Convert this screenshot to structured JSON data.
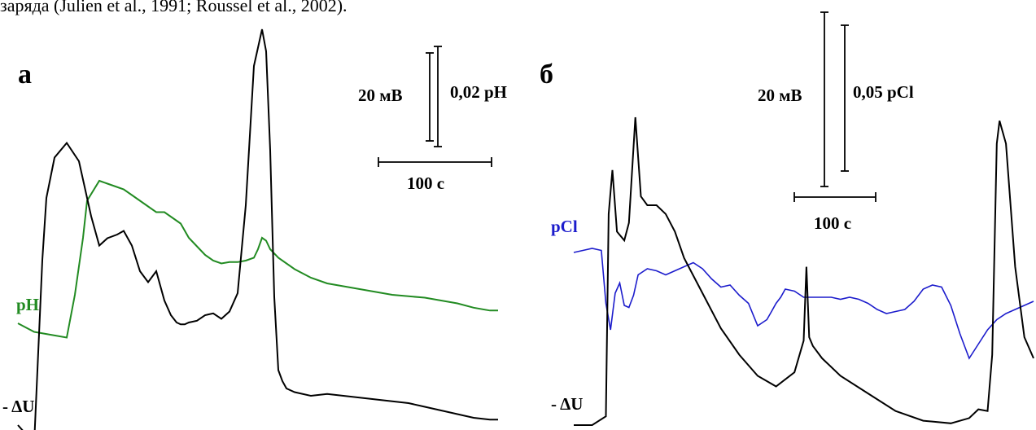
{
  "caption_fragment": "заряда (Julien et al., 1991; Roussel et al., 2002).",
  "colors": {
    "delta_u": "#000000",
    "ph": "#228B22",
    "pcl": "#1C1CCC",
    "scale": "#000000"
  },
  "chart_data": [
    {
      "type": "line",
      "panel_label": "а",
      "xlabel": "",
      "ylabel": "",
      "scale_bars": {
        "voltage_label": "20 мВ",
        "ion_label": "0,02 pH",
        "time_label": "100 с"
      },
      "series": [
        {
          "name": "- ΔU",
          "color": "#000000",
          "x": [
            0,
            20,
            30,
            35,
            45,
            60,
            75,
            90,
            100,
            110,
            122,
            130,
            140,
            150,
            160,
            170,
            180,
            188,
            195,
            200,
            205,
            210,
            220,
            230,
            240,
            250,
            260,
            270,
            280,
            290,
            300,
            305,
            310,
            315,
            320,
            325,
            330,
            340,
            360,
            380,
            400,
            420,
            440,
            460,
            480,
            500,
            520,
            540,
            560,
            580,
            590
          ],
          "y": [
            0,
            -0.5,
            4.5,
            6.2,
            7.3,
            7.7,
            7.2,
            5.7,
            4.9,
            5.1,
            5.2,
            5.3,
            4.9,
            4.2,
            3.9,
            4.2,
            3.4,
            3.0,
            2.8,
            2.75,
            2.75,
            2.8,
            2.85,
            3.0,
            3.05,
            2.9,
            3.1,
            3.6,
            6.0,
            9.8,
            10.8,
            10.2,
            7.5,
            3.5,
            1.5,
            1.2,
            1.0,
            0.9,
            0.8,
            0.85,
            0.8,
            0.75,
            0.7,
            0.65,
            0.6,
            0.5,
            0.4,
            0.3,
            0.2,
            0.15,
            0.15
          ]
        },
        {
          "name": "pH",
          "color": "#228B22",
          "x": [
            0,
            20,
            40,
            60,
            70,
            80,
            85,
            100,
            110,
            120,
            130,
            140,
            150,
            160,
            170,
            180,
            190,
            200,
            210,
            220,
            230,
            240,
            250,
            260,
            270,
            280,
            290,
            295,
            300,
            305,
            310,
            320,
            340,
            360,
            380,
            400,
            420,
            440,
            460,
            480,
            500,
            520,
            540,
            560,
            580,
            590
          ],
          "y": [
            0,
            -0.3,
            -0.4,
            -0.5,
            1.0,
            3.0,
            4.3,
            5.0,
            4.9,
            4.8,
            4.7,
            4.5,
            4.3,
            4.1,
            3.9,
            3.9,
            3.7,
            3.5,
            3.0,
            2.7,
            2.4,
            2.2,
            2.1,
            2.15,
            2.15,
            2.2,
            2.3,
            2.6,
            3.0,
            2.9,
            2.6,
            2.3,
            1.9,
            1.6,
            1.4,
            1.3,
            1.2,
            1.1,
            1.0,
            0.95,
            0.9,
            0.8,
            0.7,
            0.55,
            0.45,
            0.45
          ]
        }
      ]
    },
    {
      "type": "line",
      "panel_label": "б",
      "xlabel": "",
      "ylabel": "",
      "scale_bars": {
        "voltage_label": "20 мВ",
        "ion_label": "0,05 pCl",
        "time_label": "100 с"
      },
      "series": [
        {
          "name": "- ΔU",
          "color": "#000000",
          "x": [
            0,
            20,
            35,
            38,
            42,
            47,
            55,
            60,
            67,
            73,
            80,
            90,
            100,
            110,
            120,
            140,
            160,
            180,
            200,
            220,
            240,
            250,
            253,
            256,
            260,
            270,
            290,
            320,
            350,
            380,
            410,
            430,
            440,
            450,
            455,
            460,
            463,
            470,
            480,
            490,
            500
          ],
          "y": [
            0,
            0,
            0.5,
            12.0,
            14.5,
            11.0,
            10.5,
            11.5,
            17.5,
            13.0,
            12.5,
            12.5,
            12.0,
            11.0,
            9.5,
            7.5,
            5.5,
            4.0,
            2.8,
            2.2,
            3.0,
            4.8,
            9.0,
            5.0,
            4.5,
            3.8,
            2.8,
            1.8,
            0.8,
            0.25,
            0.1,
            0.4,
            0.9,
            0.8,
            4.0,
            16.0,
            17.3,
            16.0,
            9.0,
            5.0,
            3.8
          ]
        },
        {
          "name": "pCl",
          "color": "#1C1CCC",
          "x": [
            0,
            10,
            20,
            30,
            35,
            40,
            45,
            50,
            55,
            60,
            65,
            70,
            80,
            90,
            100,
            110,
            120,
            130,
            140,
            150,
            160,
            170,
            180,
            190,
            200,
            210,
            215,
            220,
            225,
            230,
            240,
            250,
            260,
            270,
            280,
            290,
            300,
            310,
            320,
            330,
            340,
            350,
            360,
            370,
            380,
            390,
            400,
            410,
            420,
            430,
            440,
            450,
            460,
            470,
            480,
            490,
            500
          ],
          "y": [
            0,
            0.1,
            0.2,
            0.1,
            -2.5,
            -3.8,
            -2.0,
            -1.5,
            -2.6,
            -2.7,
            -2.1,
            -1.1,
            -0.8,
            -0.9,
            -1.1,
            -0.9,
            -0.7,
            -0.5,
            -0.8,
            -1.3,
            -1.7,
            -1.6,
            -2.1,
            -2.5,
            -3.6,
            -3.3,
            -2.9,
            -2.5,
            -2.2,
            -1.8,
            -1.9,
            -2.2,
            -2.2,
            -2.2,
            -2.2,
            -2.3,
            -2.2,
            -2.3,
            -2.5,
            -2.8,
            -3.0,
            -2.9,
            -2.8,
            -2.4,
            -1.8,
            -1.6,
            -1.7,
            -2.6,
            -4.0,
            -5.2,
            -4.5,
            -3.8,
            -3.3,
            -3.0,
            -2.8,
            -2.6,
            -2.4
          ]
        }
      ]
    }
  ]
}
